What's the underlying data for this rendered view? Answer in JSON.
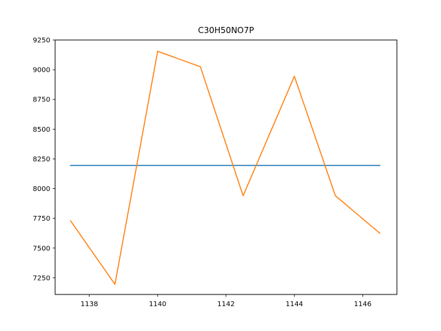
{
  "chart_data": {
    "type": "line",
    "title": "C30H50NO7P",
    "xlabel": "",
    "ylabel": "",
    "xlim": [
      1137.0,
      1147.0
    ],
    "ylim": [
      7110,
      9250
    ],
    "x_ticks": [
      1138,
      1140,
      1142,
      1144,
      1146
    ],
    "y_ticks": [
      7250,
      7500,
      7750,
      8000,
      8250,
      8500,
      8750,
      9000,
      9250
    ],
    "grid": false,
    "legend": "none",
    "series": [
      {
        "color": "#1f77b4",
        "x": [
          1137.45,
          1146.5
        ],
        "y": [
          8195,
          8195
        ]
      },
      {
        "color": "#ff7f0e",
        "x": [
          1137.45,
          1138.75,
          1140.0,
          1141.25,
          1142.5,
          1144.0,
          1145.2,
          1146.5
        ],
        "y": [
          7730,
          7195,
          9155,
          9025,
          7940,
          8945,
          7940,
          7625
        ]
      }
    ]
  }
}
